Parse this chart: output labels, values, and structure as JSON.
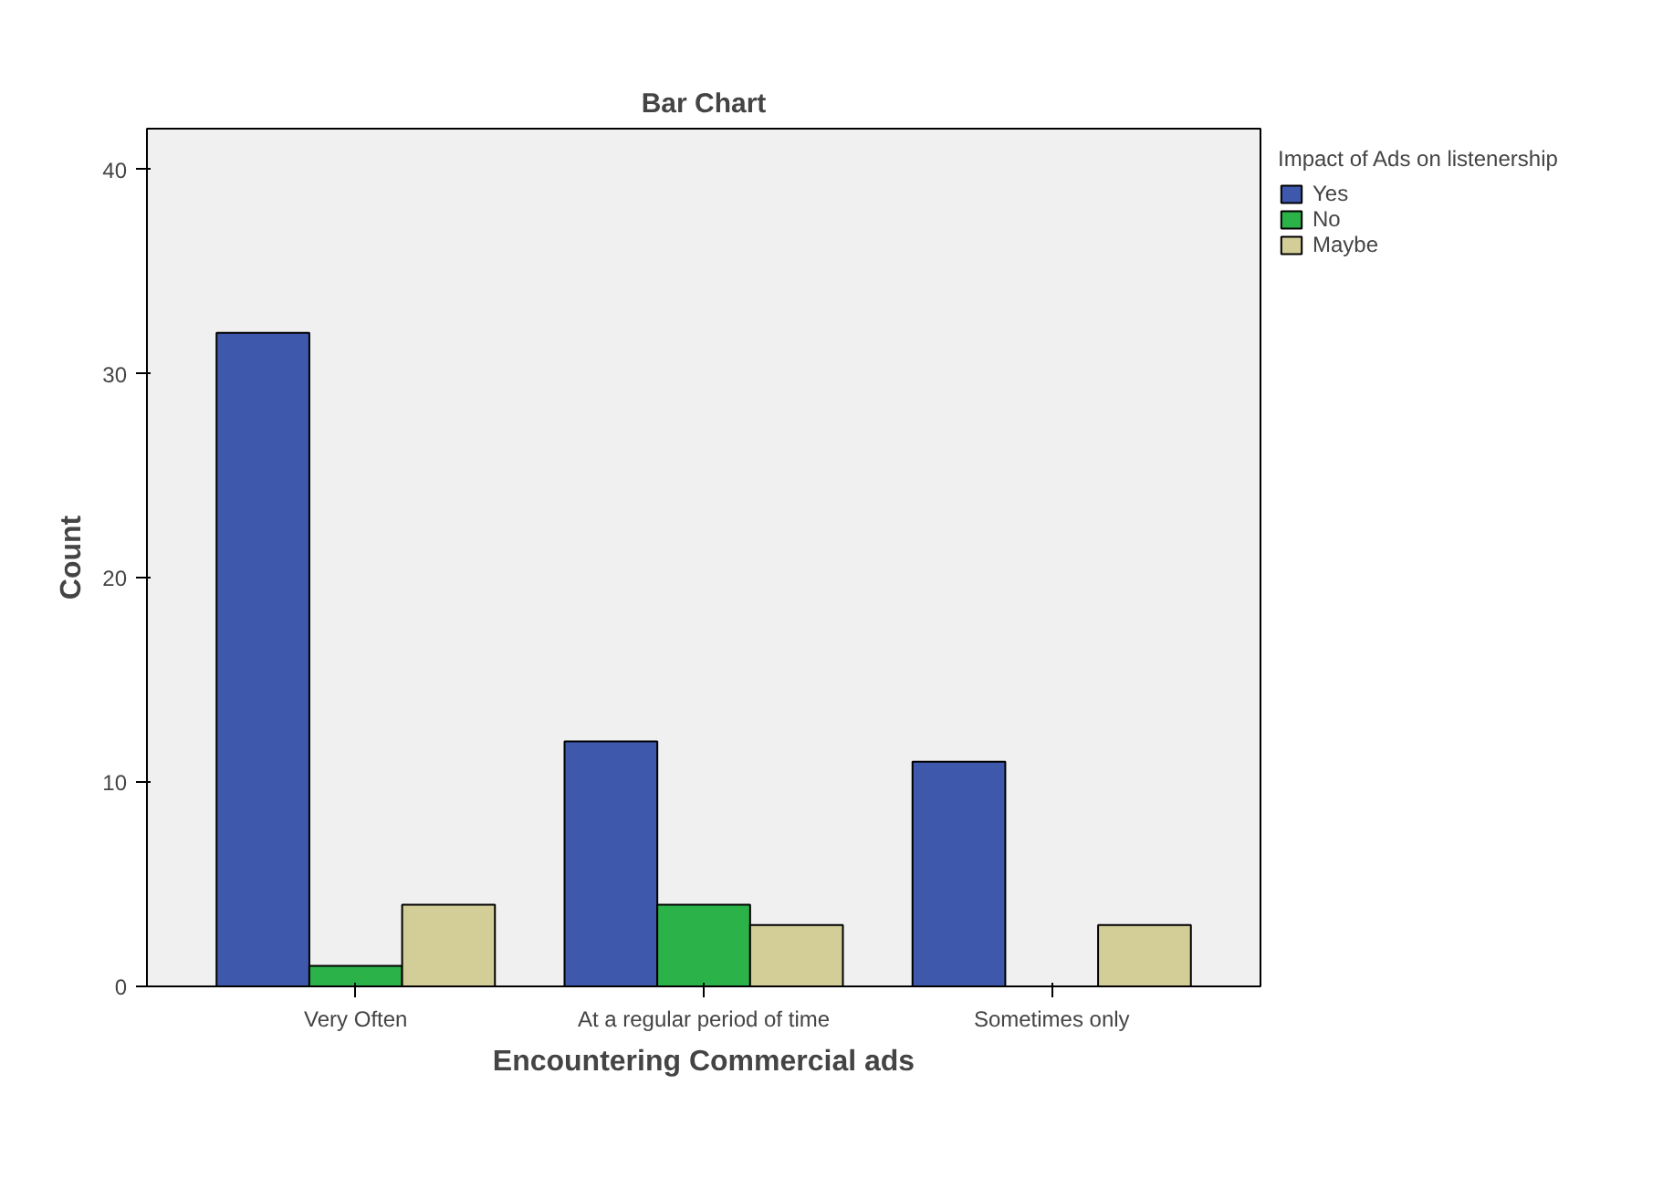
{
  "chart_data": {
    "type": "bar",
    "title": "Bar Chart",
    "xlabel": "Encountering Commercial ads",
    "ylabel": "Count",
    "legend_title": "Impact of Ads on listenership",
    "categories": [
      "Very Often",
      "At a regular period of time",
      "Sometimes only"
    ],
    "series": [
      {
        "name": "Yes",
        "color": "#3e58ac",
        "values": [
          32,
          12,
          11
        ]
      },
      {
        "name": "No",
        "color": "#2bb34a",
        "values": [
          1,
          4,
          null
        ]
      },
      {
        "name": "Maybe",
        "color": "#d3ce98",
        "values": [
          4,
          3,
          3
        ]
      }
    ],
    "ylim": [
      0,
      42
    ],
    "yticks": [
      0,
      10,
      20,
      30,
      40
    ],
    "grid": false,
    "legend": "right"
  }
}
